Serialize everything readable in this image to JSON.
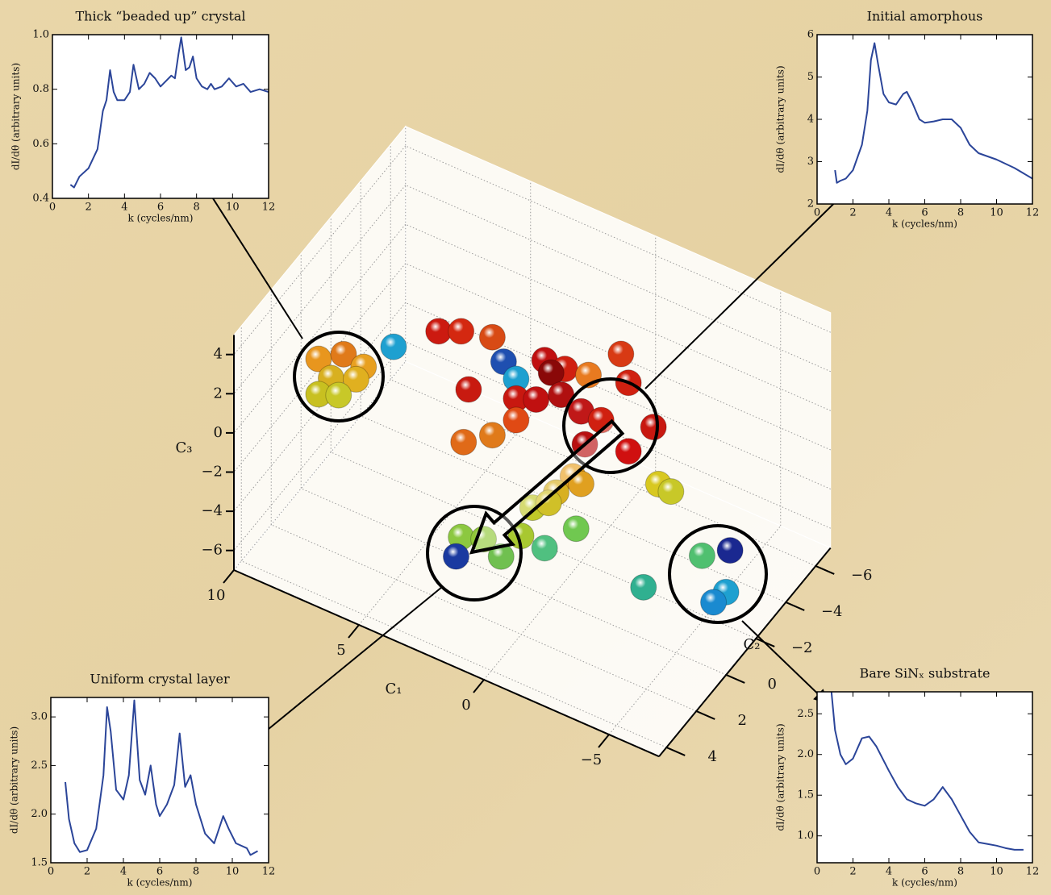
{
  "chart_data": [
    {
      "type": "scatter3d",
      "xlabel": "C₁",
      "ylabel": "C₂",
      "zlabel": "C₃",
      "x": [
        9.3,
        8.3,
        7.5,
        8.8,
        7.8,
        9.3,
        8.5,
        6.3,
        4.5,
        3.6,
        2.35,
        1.9,
        1.4,
        3.3,
        0.26,
        -0.55,
        0,
        -1.6,
        -0.3,
        -1.9,
        1.4,
        0.6,
        -0.4,
        -1.2,
        -2.0,
        -2.9,
        -1.9,
        -1.35,
        3.5,
        2.35,
        1.4,
        -0.87,
        -0.2,
        -1.2,
        0.74,
        0.1,
        -3.1,
        -3.6,
        3.6,
        2.7,
        2.0,
        1.2,
        0.26,
        -1.0,
        3.8,
        -3.65,
        -4.77,
        -5.8,
        -5.3,
        -2.5
      ],
      "y": [
        0,
        0,
        0,
        0,
        0,
        0,
        0,
        0,
        0,
        0,
        0,
        0,
        0,
        0,
        0,
        0,
        0,
        -2,
        -2,
        -2,
        0,
        0,
        0,
        0,
        0,
        -2,
        -2,
        0,
        0,
        0,
        0,
        0,
        0,
        0,
        0,
        0,
        -2,
        -2,
        0,
        0,
        0,
        0,
        0,
        0,
        0,
        -4,
        -4,
        -2,
        -2,
        -2
      ],
      "z": [
        0.0,
        0.8,
        0.6,
        -0.7,
        -0.2,
        -1.8,
        -1.4,
        2.3,
        4.1,
        4.6,
        5.0,
        4.0,
        3.4,
        1.8,
        5.0,
        5.0,
        4.5,
        4.5,
        2.7,
        3.2,
        2.4,
        2.8,
        3.6,
        3.2,
        3.2,
        1.5,
        -0.3,
        1.6,
        -1.0,
        0.0,
        1.3,
        -0.3,
        -1.5,
        -0.5,
        -2.8,
        -2.2,
        -1.3,
        -1.4,
        -5.9,
        -5.5,
        -6.0,
        -4.5,
        -4.6,
        -2.9,
        -7,
        -6.5,
        -5.6,
        -5.3,
        -6.1,
        -6.9
      ],
      "colors": [
        "#e8961e",
        "#e07a1a",
        "#e8a020",
        "#d8b020",
        "#e0b020",
        "#c8c020",
        "#c8c828",
        "#1ea0d0",
        "#cc1a10",
        "#d42810",
        "#d84a14",
        "#1f4fb0",
        "#1ea0d0",
        "#c81a10",
        "#c01010",
        "#d02010",
        "#8a0808",
        "#d83a14",
        "#e87a20",
        "#d02010",
        "#c81810",
        "#c01010",
        "#b01010",
        "#c01818",
        "#d02010",
        "#c81810",
        "#d01010",
        "#b81010",
        "#e06a18",
        "#e07a1a",
        "#e04a14",
        "#e8a020",
        "#d8b020",
        "#e0a020",
        "#c0c828",
        "#d0c028",
        "#d8c820",
        "#c8c828",
        "#8cc840",
        "#90c838",
        "#70c050",
        "#a8c830",
        "#50c080",
        "#70c850",
        "#1a3aa0",
        "#50c070",
        "#1a2890",
        "#1ea0d0",
        "#1a8ad0",
        "#30b090"
      ],
      "xlim": [
        -7,
        10
      ],
      "ylim": [
        -7,
        4.5
      ],
      "zlim": [
        -7,
        5
      ],
      "xticks": [
        {
          "value": -5,
          "label": "−5"
        },
        0,
        5,
        10
      ],
      "yticks": [
        {
          "value": -6,
          "label": "−6"
        },
        {
          "value": -4,
          "label": "−4"
        },
        {
          "value": -2,
          "label": "−2"
        },
        0,
        2,
        4
      ],
      "zticks": [
        {
          "value": -6,
          "label": "−6"
        },
        {
          "value": -4,
          "label": "−4"
        },
        {
          "value": -2,
          "label": "−2"
        },
        0,
        2,
        4
      ],
      "grid": true
    },
    {
      "type": "line",
      "title": "Thick “beaded up” crystal",
      "xlabel": "k (cycles/nm)",
      "ylabel": "dI/dθ (arbitrary units)",
      "color": "#2b4599",
      "x": [
        1.0,
        1.2,
        1.5,
        2,
        2.5,
        2.8,
        3.0,
        3.2,
        3.4,
        3.6,
        4.0,
        4.3,
        4.5,
        4.8,
        5.1,
        5.4,
        5.7,
        6.0,
        6.3,
        6.6,
        6.8,
        7.0,
        7.15,
        7.4,
        7.6,
        7.8,
        8.0,
        8.3,
        8.6,
        8.8,
        9.0,
        9.4,
        9.8,
        10.2,
        10.6,
        11.0,
        11.5,
        12
      ],
      "values": [
        0.45,
        0.44,
        0.48,
        0.51,
        0.58,
        0.72,
        0.76,
        0.87,
        0.79,
        0.76,
        0.76,
        0.79,
        0.89,
        0.8,
        0.82,
        0.86,
        0.84,
        0.81,
        0.83,
        0.85,
        0.84,
        0.93,
        0.99,
        0.87,
        0.88,
        0.92,
        0.84,
        0.81,
        0.8,
        0.82,
        0.8,
        0.81,
        0.84,
        0.81,
        0.82,
        0.79,
        0.8,
        0.79
      ],
      "xlim": [
        0,
        12
      ],
      "ylim": [
        0.4,
        1.0
      ],
      "xticks": [
        0,
        2,
        4,
        6,
        8,
        10,
        12
      ],
      "yticks": [
        0.4,
        0.6,
        0.8,
        {
          "value": 1.0,
          "label": "1.0"
        }
      ]
    },
    {
      "type": "line",
      "title": "Initial amorphous",
      "xlabel": "k (cycles/nm)",
      "ylabel": "dI/dθ (arbitrary units)",
      "color": "#2b4599",
      "x": [
        1.0,
        1.1,
        1.3,
        1.6,
        2,
        2.5,
        2.8,
        3.0,
        3.2,
        3.4,
        3.7,
        4.0,
        4.4,
        4.8,
        5.0,
        5.3,
        5.7,
        6.0,
        6.5,
        7.0,
        7.5,
        8.0,
        8.5,
        9.0,
        10,
        11,
        12
      ],
      "values": [
        2.8,
        2.5,
        2.55,
        2.6,
        2.8,
        3.4,
        4.2,
        5.4,
        5.8,
        5.3,
        4.6,
        4.4,
        4.35,
        4.6,
        4.65,
        4.4,
        4.0,
        3.92,
        3.95,
        4.0,
        4.0,
        3.8,
        3.4,
        3.2,
        3.05,
        2.85,
        2.6
      ],
      "xlim": [
        0,
        12
      ],
      "ylim": [
        2,
        6
      ],
      "xticks": [
        0,
        2,
        4,
        6,
        8,
        10,
        12
      ],
      "yticks": [
        2,
        3,
        4,
        5,
        6
      ]
    },
    {
      "type": "line",
      "title": "Uniform crystal layer",
      "xlabel": "k (cycles/nm)",
      "ylabel": "dI/dθ (arbitrary units)",
      "color": "#2b4599",
      "x": [
        0.8,
        1.0,
        1.3,
        1.6,
        2.0,
        2.5,
        2.9,
        3.1,
        3.3,
        3.6,
        4.0,
        4.3,
        4.6,
        4.9,
        5.2,
        5.5,
        5.8,
        6.0,
        6.4,
        6.8,
        7.1,
        7.4,
        7.7,
        8.0,
        8.5,
        9.0,
        9.5,
        9.8,
        10.2,
        10.8,
        11.0,
        11.4
      ],
      "values": [
        2.33,
        1.95,
        1.7,
        1.61,
        1.63,
        1.85,
        2.4,
        3.1,
        2.85,
        2.25,
        2.15,
        2.4,
        3.17,
        2.35,
        2.2,
        2.5,
        2.1,
        1.98,
        2.1,
        2.3,
        2.83,
        2.28,
        2.4,
        2.1,
        1.8,
        1.7,
        1.98,
        1.85,
        1.7,
        1.65,
        1.58,
        1.62
      ],
      "xlim": [
        0,
        12
      ],
      "ylim": [
        1.5,
        3.2
      ],
      "xticks": [
        0,
        2,
        4,
        6,
        8,
        10,
        12
      ],
      "yticks": [
        1.5,
        {
          "value": 2.0,
          "label": "2.0"
        },
        2.5,
        {
          "value": 3.0,
          "label": "3.0"
        }
      ]
    },
    {
      "type": "line",
      "title": "Bare SiNₓ substrate",
      "xlabel": "k (cycles/nm)",
      "ylabel": "dI/dθ (arbitrary units)",
      "color": "#2b4599",
      "x": [
        0.8,
        1.0,
        1.3,
        1.6,
        2.0,
        2.5,
        2.9,
        3.3,
        4.0,
        4.5,
        5.0,
        5.5,
        6.0,
        6.5,
        7.0,
        7.5,
        8.0,
        8.5,
        9.0,
        9.5,
        10,
        10.5,
        11,
        11.5
      ],
      "values": [
        2.77,
        2.3,
        2.0,
        1.88,
        1.95,
        2.2,
        2.22,
        2.1,
        1.8,
        1.6,
        1.45,
        1.4,
        1.37,
        1.45,
        1.6,
        1.45,
        1.25,
        1.05,
        0.92,
        0.9,
        0.88,
        0.85,
        0.83,
        0.83
      ],
      "xlim": [
        0,
        12
      ],
      "ylim": [
        0.67,
        2.77
      ],
      "xticks": [
        0,
        2,
        4,
        6,
        8,
        10,
        12
      ],
      "yticks": [
        {
          "value": 1.0,
          "label": "1.0"
        },
        1.5,
        {
          "value": 2.0,
          "label": "2.0"
        },
        2.5
      ]
    }
  ]
}
